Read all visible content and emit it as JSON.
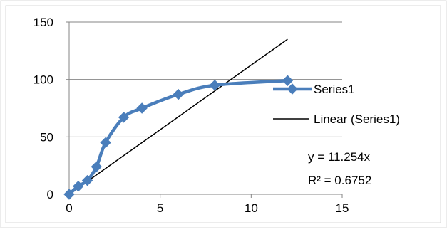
{
  "chart_data": {
    "type": "scatter",
    "title": "",
    "xlabel": "",
    "ylabel": "",
    "xlim": [
      0,
      15
    ],
    "ylim": [
      0,
      150
    ],
    "x_ticks": [
      0,
      5,
      10,
      15
    ],
    "y_ticks": [
      0,
      50,
      100,
      150
    ],
    "x_tick_labels": [
      "0",
      "5",
      "10",
      "15"
    ],
    "y_tick_labels": [
      "0",
      "50",
      "100",
      "150"
    ],
    "grid": "horizontal major gridlines",
    "legend_position": "right",
    "series": [
      {
        "name": "Series1",
        "color": "#4a7ebb",
        "marker": "diamond",
        "line": "smoothed",
        "points": [
          {
            "x": 0,
            "y": 0
          },
          {
            "x": 0.5,
            "y": 7
          },
          {
            "x": 1,
            "y": 12
          },
          {
            "x": 1.5,
            "y": 24
          },
          {
            "x": 2,
            "y": 45
          },
          {
            "x": 3,
            "y": 67
          },
          {
            "x": 4,
            "y": 75
          },
          {
            "x": 6,
            "y": 87
          },
          {
            "x": 8,
            "y": 95
          },
          {
            "x": 12,
            "y": 99
          }
        ]
      }
    ],
    "trendline": {
      "name": "Linear (Series1)",
      "type": "linear",
      "color": "#000000",
      "slope": 11.254,
      "intercept": 0,
      "x_range": [
        0,
        12
      ],
      "equation_label": "y = 11.254x",
      "r2_label": "R² = 0.6752"
    },
    "legend": [
      {
        "label": "Series1",
        "kind": "series"
      },
      {
        "label": "Linear (Series1)",
        "kind": "trendline"
      }
    ]
  }
}
